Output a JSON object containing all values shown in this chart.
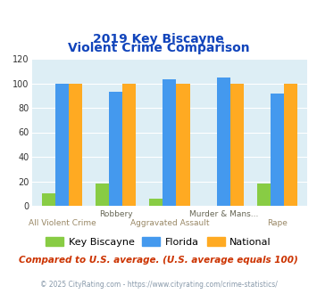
{
  "title_line1": "2019 Key Biscayne",
  "title_line2": "Violent Crime Comparison",
  "groups": [
    "All Violent Crime",
    "Robbery",
    "Aggravated Assault",
    "Murder & Mans...",
    "Rape"
  ],
  "top_labels": [
    "",
    "Robbery",
    "",
    "Murder & Mans...",
    ""
  ],
  "bottom_labels": [
    "All Violent Crime",
    "",
    "Aggravated Assault",
    "",
    "Rape"
  ],
  "key_biscayne": [
    10,
    18,
    6,
    0,
    18
  ],
  "florida": [
    100,
    93,
    103,
    105,
    92
  ],
  "national": [
    100,
    100,
    100,
    100,
    100
  ],
  "colors": {
    "key_biscayne": "#88cc44",
    "florida": "#4499ee",
    "national": "#ffaa22"
  },
  "ylim": [
    0,
    120
  ],
  "yticks": [
    0,
    20,
    40,
    60,
    80,
    100,
    120
  ],
  "background_color": "#ddeef5",
  "legend_labels": [
    "Key Biscayne",
    "Florida",
    "National"
  ],
  "footnote1": "Compared to U.S. average. (U.S. average equals 100)",
  "footnote2": "© 2025 CityRating.com - https://www.cityrating.com/crime-statistics/",
  "title_color": "#1144bb",
  "footnote1_color": "#cc3300",
  "footnote2_color": "#8899aa"
}
